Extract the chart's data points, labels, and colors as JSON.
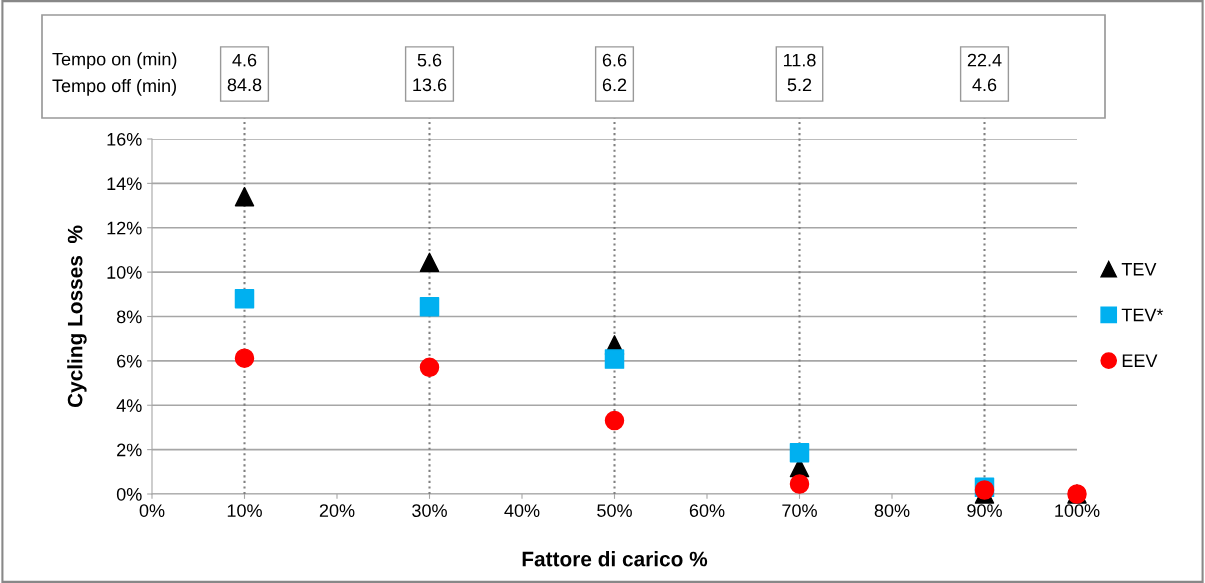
{
  "chart_data": {
    "type": "scatter",
    "xlabel": "Fattore di carico %",
    "ylabel": "Cycling Losses  %",
    "x": [
      10,
      30,
      50,
      70,
      90,
      100
    ],
    "series": [
      {
        "name": "TEV",
        "color": "#000000",
        "marker": "triangle",
        "values": [
          13.4,
          10.44,
          6.72,
          1.19,
          0,
          0
        ]
      },
      {
        "name": "TEV*",
        "color": "#00b0f0",
        "marker": "square",
        "values": [
          8.8,
          8.44,
          6.08,
          1.86,
          0.3,
          null
        ]
      },
      {
        "name": "EEV",
        "color": "#ff0000",
        "marker": "circle",
        "values": [
          6.12,
          5.71,
          3.31,
          0.45,
          0.18,
          0
        ]
      }
    ],
    "xlim": [
      0,
      100
    ],
    "ylim": [
      0,
      16
    ],
    "xticks": [
      {
        "value": 0,
        "label": "0%"
      },
      {
        "value": 10,
        "label": "10%"
      },
      {
        "value": 20,
        "label": "20%"
      },
      {
        "value": 30,
        "label": "30%"
      },
      {
        "value": 40,
        "label": "40%"
      },
      {
        "value": 50,
        "label": "50%"
      },
      {
        "value": 60,
        "label": "60%"
      },
      {
        "value": 70,
        "label": "70%"
      },
      {
        "value": 80,
        "label": "80%"
      },
      {
        "value": 90,
        "label": "90%"
      },
      {
        "value": 100,
        "label": "100%"
      }
    ],
    "yticks": [
      {
        "value": 0,
        "label": "0%"
      },
      {
        "value": 2,
        "label": "2%"
      },
      {
        "value": 4,
        "label": "4%"
      },
      {
        "value": 6,
        "label": "6%"
      },
      {
        "value": 8,
        "label": "8%"
      },
      {
        "value": 10,
        "label": "10%"
      },
      {
        "value": 12,
        "label": "12%"
      },
      {
        "value": 14,
        "label": "14%"
      },
      {
        "value": 16,
        "label": "16%"
      }
    ],
    "ref_lines": [
      {
        "axis": "x",
        "value": 10,
        "color": "#808080",
        "line_style": "dotted"
      },
      {
        "axis": "x",
        "value": 30,
        "color": "#808080",
        "line_style": "dotted"
      },
      {
        "axis": "x",
        "value": 50,
        "color": "#808080",
        "line_style": "dotted"
      },
      {
        "axis": "x",
        "value": 70,
        "color": "#808080",
        "line_style": "dotted"
      },
      {
        "axis": "x",
        "value": 90,
        "color": "#808080",
        "line_style": "dotted"
      }
    ],
    "annotations": [
      "Tempo on (min)\nTempo off (min)",
      "4.6\n84.8",
      "5.6\n13.6",
      "6.6\n6.2",
      "11.8\n5.2",
      "22.4\n4.6"
    ],
    "grid": "y",
    "legend": "right"
  }
}
